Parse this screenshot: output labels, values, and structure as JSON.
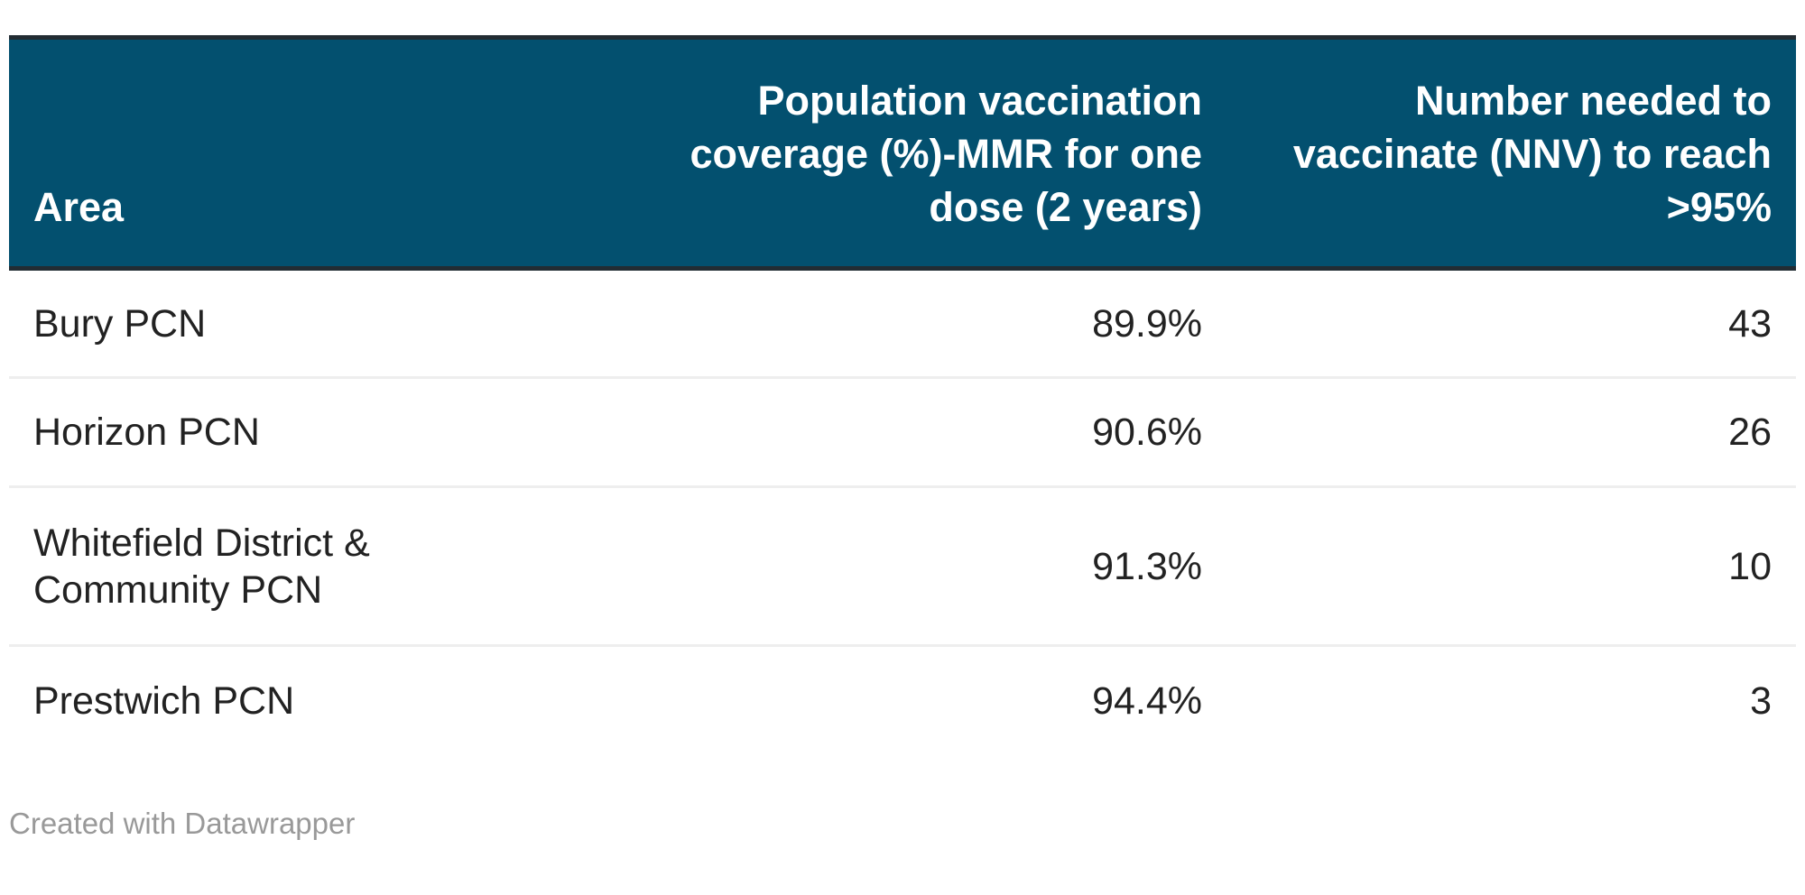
{
  "chart_data": {
    "type": "table",
    "columns": [
      "Area",
      "Population vaccination coverage (%)-MMR for one dose (2 years)",
      "Number needed to vaccinate (NNV) to reach >95%"
    ],
    "rows": [
      {
        "area": "Bury PCN",
        "coverage": "89.9%",
        "nnv": "43"
      },
      {
        "area": "Horizon PCN",
        "coverage": "90.6%",
        "nnv": "26"
      },
      {
        "area": "Whitefield District & Community PCN",
        "coverage": "91.3%",
        "nnv": "10"
      },
      {
        "area": "Prestwich PCN",
        "coverage": "94.4%",
        "nnv": "3"
      }
    ],
    "header_color": "#03506f"
  },
  "footer": {
    "credit": "Created with Datawrapper"
  }
}
